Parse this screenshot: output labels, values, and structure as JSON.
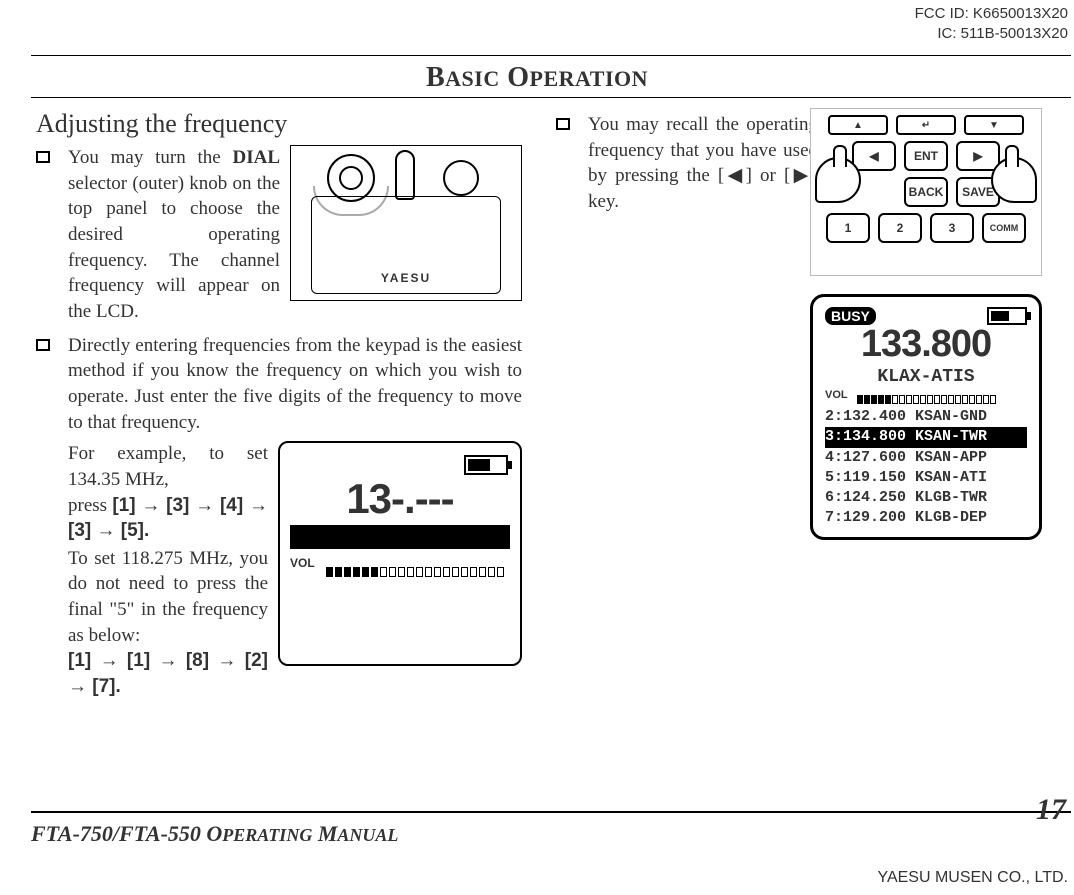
{
  "header": {
    "fcc": "FCC ID: K6650013X20",
    "ic": "IC: 511B-50013X20"
  },
  "section_title_big": "B",
  "section_title_small1": "ASIC",
  "section_title_big2": " O",
  "section_title_small2": "PERATION",
  "left": {
    "subheading": "Adjusting the frequency",
    "para1_a": "You may turn the ",
    "para1_bold": "DIAL",
    "para1_b": " selector (outer) knob on the top panel to choose the desired operating frequency. The channel frequency will appear on the LCD.",
    "fig_top": {
      "brand": "YAESU"
    },
    "para2": "Directly entering frequencies from the keypad is the easiest method if you know the frequency on which you wish to operate. Just enter the five digits of the frequency to move to that frequency.",
    "para3a": "For example, to set 134.35 MHz,",
    "para3b_pre": "press ",
    "seq1": "[1] → [3] → [4] → [3] → [5].",
    "para3c": "To set 118.275 MHz, you do not need to press the final \"5\" in the frequency as below:",
    "seq2": "[1] → [1] → [8] → [2] → [7].",
    "fig_lcd": {
      "freq": "13-.---",
      "vol_label": "VOL",
      "vol_filled": 6,
      "vol_total": 20
    }
  },
  "right": {
    "para": "You may recall the operating frequency that you have used by pressing the [◀] or [▶] key.",
    "keypad": {
      "soft_up": "▲",
      "soft_enter": "↵",
      "soft_down": "▼",
      "row2": [
        "◀",
        "ENT",
        "▶"
      ],
      "row3": [
        "",
        "BACK",
        "SAVE"
      ],
      "row4": [
        "1",
        "2",
        "3",
        "COMM"
      ]
    },
    "lcd2": {
      "busy": "BUSY",
      "freq": "133.800",
      "name": "KLAX-ATIS",
      "vol_label": "VOL",
      "vol_filled": 5,
      "vol_total": 20,
      "rows": [
        {
          "t": "2:132.400 KSAN-GND",
          "sel": false
        },
        {
          "t": "3:134.800 KSAN-TWR",
          "sel": true
        },
        {
          "t": "4:127.600 KSAN-APP",
          "sel": false
        },
        {
          "t": "5:119.150 KSAN-ATI",
          "sel": false
        },
        {
          "t": "6:124.250 KLGB-TWR",
          "sel": false
        },
        {
          "t": "7:129.200 KLGB-DEP",
          "sel": false
        }
      ]
    }
  },
  "footer": {
    "manual": "FTA-750/FTA-550 O",
    "manual_sc": "PERATING",
    "manual2": " M",
    "manual_sc2": "ANUAL",
    "page": "17",
    "company": "YAESU MUSEN CO., LTD."
  }
}
